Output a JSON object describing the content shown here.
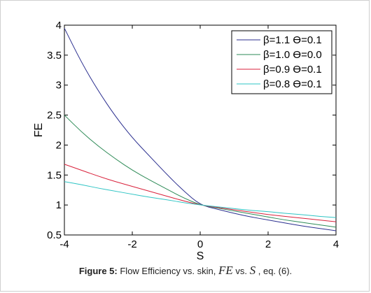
{
  "chart_data": {
    "type": "line",
    "xlabel": "S",
    "ylabel": "FE",
    "xlim": [
      -4,
      4
    ],
    "ylim": [
      0.5,
      4
    ],
    "xticks": [
      "-4",
      "-2",
      "0",
      "2",
      "4"
    ],
    "yticks": [
      "0.5",
      "1",
      "1.5",
      "2",
      "2.5",
      "3",
      "3.5",
      "4"
    ],
    "x": [
      -4,
      -3.5,
      -3,
      -2.5,
      -2,
      -1.5,
      -1,
      -0.5,
      0,
      0.5,
      1,
      1.5,
      2,
      2.5,
      3,
      3.5,
      4
    ],
    "series": [
      {
        "name": "β=1.1  ϴ=0.1",
        "color": "#2b2f8f",
        "values": [
          3.95,
          3.38,
          2.9,
          2.48,
          2.12,
          1.82,
          1.52,
          1.24,
          1.0,
          0.93,
          0.86,
          0.8,
          0.75,
          0.7,
          0.65,
          0.61,
          0.57
        ]
      },
      {
        "name": "β=1.0  ϴ=0.0",
        "color": "#2e8b57",
        "values": [
          2.5,
          2.22,
          1.98,
          1.77,
          1.58,
          1.42,
          1.27,
          1.12,
          1.0,
          0.95,
          0.9,
          0.85,
          0.8,
          0.75,
          0.71,
          0.67,
          0.63
        ]
      },
      {
        "name": "β=0.9  ϴ=0.1",
        "color": "#d9213b",
        "values": [
          1.68,
          1.58,
          1.48,
          1.39,
          1.31,
          1.23,
          1.15,
          1.07,
          1.0,
          0.96,
          0.92,
          0.88,
          0.84,
          0.81,
          0.78,
          0.75,
          0.72
        ]
      },
      {
        "name": "β=0.8  ϴ=0.1",
        "color": "#2ec4c4",
        "values": [
          1.39,
          1.34,
          1.28,
          1.23,
          1.18,
          1.13,
          1.09,
          1.04,
          1.0,
          0.97,
          0.94,
          0.91,
          0.89,
          0.86,
          0.84,
          0.81,
          0.79
        ]
      }
    ],
    "grid": false,
    "legend": "top-right"
  },
  "caption": {
    "label": "Figure 5:",
    "text": " Flow Efficiency vs. skin, ",
    "var1": "FE",
    "vs": " vs. ",
    "var2": "S",
    "tail": " , eq. (6)."
  }
}
